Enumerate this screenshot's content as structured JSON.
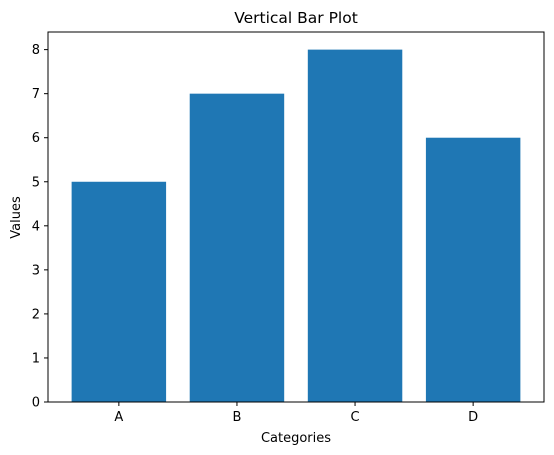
{
  "chart_data": {
    "type": "bar",
    "title": "Vertical Bar Plot",
    "xlabel": "Categories",
    "ylabel": "Values",
    "categories": [
      "A",
      "B",
      "C",
      "D"
    ],
    "values": [
      5,
      7,
      8,
      6
    ],
    "ylim": [
      0,
      8.4
    ],
    "yticks": [
      "0",
      "1",
      "2",
      "3",
      "4",
      "5",
      "6",
      "7",
      "8"
    ],
    "grid": false,
    "legend": "none",
    "colors": {
      "bar": "#1f77b4",
      "axis": "#000000",
      "background": "#ffffff"
    }
  }
}
